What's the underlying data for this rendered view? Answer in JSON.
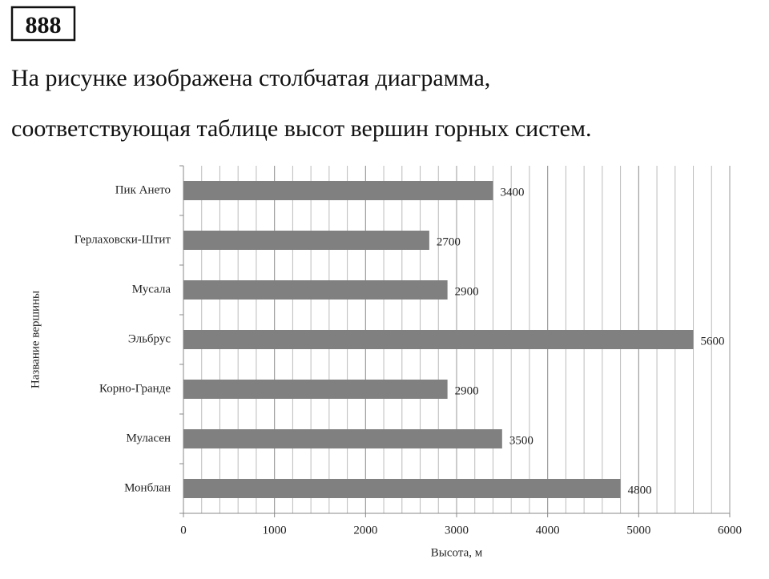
{
  "problem_number": "888",
  "text": [
    "На рисунке изображена столбчатая диаграмма,",
    "соответствующая таблице высот вершин горных систем."
  ],
  "chart_data": {
    "type": "bar",
    "orientation": "horizontal",
    "categories": [
      "Пик Ането",
      "Герлаховски-Штит",
      "Мусала",
      "Эльбрус",
      "Корно-Гранде",
      "Муласен",
      "Монблан"
    ],
    "values": [
      3400,
      2700,
      2900,
      5600,
      2900,
      3500,
      4800
    ],
    "color": "#808080",
    "xlim": [
      0,
      6000
    ],
    "xticks": [
      0,
      1000,
      2000,
      3000,
      4000,
      5000,
      6000
    ],
    "grid": true,
    "xgrid_step": 200,
    "xlabel": "Высота, м",
    "ylabel": "Название вершины"
  }
}
